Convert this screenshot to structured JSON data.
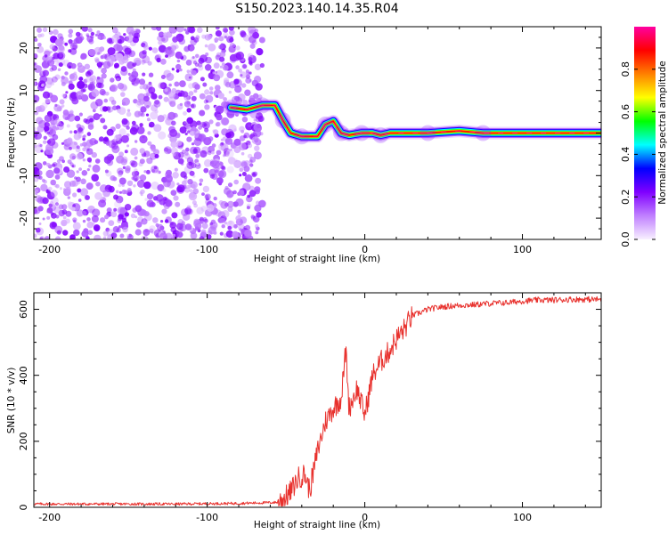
{
  "title": "S150.2023.140.14.35.R04",
  "chart_data": [
    {
      "type": "heatmap",
      "name": "spectrogram",
      "xlabel": "Height of straight line (km)",
      "ylabel": "Frequency (Hz)",
      "xlim": [
        -210,
        150
      ],
      "ylim": [
        -25,
        25
      ],
      "xticks": [
        -200,
        -100,
        0,
        100
      ],
      "yticks": [
        -20,
        -10,
        0,
        10,
        20
      ],
      "xtick_labels": [
        "-200",
        "-100",
        "0",
        "100"
      ],
      "ytick_labels": [
        "-20",
        "-10",
        "0",
        "10",
        "20"
      ],
      "colorbar": {
        "label": "Normalized spectral amplitude",
        "range": [
          0,
          1
        ],
        "ticks": [
          0.0,
          0.2,
          0.4,
          0.6,
          0.8
        ],
        "tick_labels": [
          "0.0",
          "0.2",
          "0.4",
          "0.6",
          "0.8"
        ],
        "colormap": [
          "#f8f0ff",
          "#c080ff",
          "#8000ff",
          "#0000ff",
          "#00ffff",
          "#00ff00",
          "#ffff00",
          "#ff8000",
          "#ff0000",
          "#ff00a0"
        ]
      },
      "noise_region": {
        "x": [
          -210,
          -65
        ],
        "amplitude_range": [
          0.0,
          0.2
        ]
      },
      "signal_trace": [
        {
          "x": -85,
          "f": 6.0
        },
        {
          "x": -75,
          "f": 5.5
        },
        {
          "x": -65,
          "f": 6.5
        },
        {
          "x": -57,
          "f": 6.5
        },
        {
          "x": -52,
          "f": 3.0
        },
        {
          "x": -47,
          "f": 0.0
        },
        {
          "x": -40,
          "f": -0.8
        },
        {
          "x": -30,
          "f": -0.8
        },
        {
          "x": -25,
          "f": 2.0
        },
        {
          "x": -20,
          "f": 2.8
        },
        {
          "x": -15,
          "f": 0.0
        },
        {
          "x": -10,
          "f": -0.5
        },
        {
          "x": -2,
          "f": 0.0
        },
        {
          "x": 5,
          "f": 0.0
        },
        {
          "x": 10,
          "f": -0.5
        },
        {
          "x": 16,
          "f": 0.0
        },
        {
          "x": 40,
          "f": 0.0
        },
        {
          "x": 60,
          "f": 0.5
        },
        {
          "x": 75,
          "f": 0.0
        },
        {
          "x": 150,
          "f": 0.0
        }
      ]
    },
    {
      "type": "line",
      "name": "snr",
      "xlabel": "Height of straight line (km)",
      "ylabel": "SNR (10 * v/v)",
      "xlim": [
        -210,
        150
      ],
      "ylim": [
        0,
        650
      ],
      "xticks": [
        -200,
        -100,
        0,
        100
      ],
      "yticks": [
        0,
        200,
        400,
        600
      ],
      "xtick_labels": [
        "-200",
        "-100",
        "0",
        "100"
      ],
      "ytick_labels": [
        "0",
        "200",
        "400",
        "600"
      ],
      "color": "#e8312d",
      "series": [
        {
          "name": "SNR",
          "x": [
            -210,
            -160,
            -120,
            -80,
            -55,
            -48,
            -42,
            -38,
            -35,
            -30,
            -25,
            -20,
            -15,
            -12,
            -10,
            -5,
            0,
            5,
            10,
            15,
            20,
            25,
            30,
            40,
            50,
            60,
            70,
            80,
            90,
            100,
            110,
            120,
            130,
            150
          ],
          "y": [
            10,
            10,
            10,
            12,
            15,
            40,
            90,
            100,
            50,
            170,
            260,
            300,
            330,
            480,
            300,
            360,
            280,
            400,
            440,
            470,
            510,
            540,
            580,
            600,
            608,
            612,
            614,
            618,
            620,
            625,
            628,
            628,
            630,
            630
          ]
        }
      ]
    }
  ]
}
